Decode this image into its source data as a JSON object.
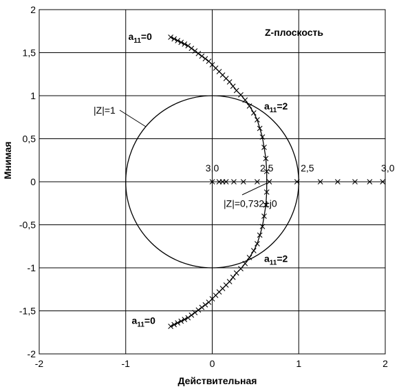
{
  "chart_data": {
    "type": "scatter",
    "title": "",
    "plane_label": "Z-плоскость",
    "xlabel": "Действительная",
    "ylabel": "Мнимая",
    "xlim": [
      -2,
      2
    ],
    "ylim": [
      -2,
      2
    ],
    "xticks": [
      -2,
      -1,
      0,
      1,
      2
    ],
    "xtick_labels": [
      "-2",
      "-1",
      "0",
      "1",
      "2"
    ],
    "yticks": [
      2,
      1.5,
      1,
      0.5,
      0,
      -0.5,
      -1,
      -1.5,
      -2
    ],
    "ytick_labels": [
      "2",
      "1,5",
      "1",
      "0,5",
      "0",
      "-0,5",
      "-1",
      "-1,5",
      "-2"
    ],
    "grid": true,
    "unit_circle": {
      "radius": 1,
      "label": "|Z|=1"
    },
    "series": [
      {
        "points": [
          [
            -0.48,
            1.68
          ],
          [
            -0.44,
            1.66
          ],
          [
            -0.4,
            1.64
          ],
          [
            -0.36,
            1.62
          ],
          [
            -0.32,
            1.6
          ],
          [
            -0.28,
            1.58
          ],
          [
            -0.24,
            1.55
          ],
          [
            -0.2,
            1.52
          ],
          [
            -0.16,
            1.49
          ],
          [
            -0.12,
            1.46
          ],
          [
            -0.08,
            1.43
          ],
          [
            -0.04,
            1.4
          ],
          [
            0.0,
            1.36
          ],
          [
            0.04,
            1.32
          ],
          [
            0.08,
            1.28
          ],
          [
            0.12,
            1.24
          ],
          [
            0.16,
            1.2
          ],
          [
            0.2,
            1.16
          ],
          [
            0.24,
            1.11
          ],
          [
            0.28,
            1.06
          ],
          [
            0.33,
            1.01
          ],
          [
            0.38,
            0.95
          ],
          [
            0.43,
            0.88
          ],
          [
            0.48,
            0.8
          ],
          [
            0.52,
            0.72
          ],
          [
            0.55,
            0.62
          ],
          [
            0.58,
            0.52
          ],
          [
            0.6,
            0.4
          ],
          [
            0.62,
            0.27
          ],
          [
            0.63,
            0.12
          ],
          [
            0.63,
            -0.12
          ],
          [
            0.62,
            -0.27
          ],
          [
            0.6,
            -0.4
          ],
          [
            0.58,
            -0.52
          ],
          [
            0.55,
            -0.62
          ],
          [
            0.52,
            -0.72
          ],
          [
            0.48,
            -0.8
          ],
          [
            0.43,
            -0.88
          ],
          [
            0.38,
            -0.95
          ],
          [
            0.33,
            -1.01
          ],
          [
            0.28,
            -1.06
          ],
          [
            0.24,
            -1.11
          ],
          [
            0.2,
            -1.16
          ],
          [
            0.16,
            -1.2
          ],
          [
            0.12,
            -1.24
          ],
          [
            0.08,
            -1.28
          ],
          [
            0.04,
            -1.32
          ],
          [
            0.0,
            -1.36
          ],
          [
            -0.04,
            -1.4
          ],
          [
            -0.08,
            -1.43
          ],
          [
            -0.12,
            -1.46
          ],
          [
            -0.16,
            -1.49
          ],
          [
            -0.2,
            -1.52
          ],
          [
            -0.24,
            -1.55
          ],
          [
            -0.28,
            -1.58
          ],
          [
            -0.32,
            -1.6
          ],
          [
            -0.36,
            -1.62
          ],
          [
            -0.4,
            -1.64
          ],
          [
            -0.44,
            -1.66
          ],
          [
            -0.48,
            -1.68
          ]
        ]
      },
      {
        "points": [
          [
            0.0,
            0
          ],
          [
            0.08,
            0
          ],
          [
            0.12,
            0
          ],
          [
            0.16,
            0
          ],
          [
            0.25,
            0
          ],
          [
            0.36,
            0
          ],
          [
            0.52,
            0
          ],
          [
            0.66,
            0
          ],
          [
            0.98,
            0
          ],
          [
            1.25,
            0
          ],
          [
            1.45,
            0
          ],
          [
            1.65,
            0
          ],
          [
            1.82,
            0
          ],
          [
            1.97,
            0
          ]
        ]
      }
    ],
    "annotations": [
      {
        "text": "a",
        "sub": "11",
        "rest": "=0",
        "x": -0.97,
        "y": 1.65
      },
      {
        "text": "a",
        "sub": "11",
        "rest": "=2",
        "x": 0.6,
        "y": 0.84
      },
      {
        "text": "a",
        "sub": "11",
        "rest": "=2",
        "x": 0.6,
        "y": -0.93
      },
      {
        "text": "a",
        "sub": "11",
        "rest": "=0",
        "x": -0.93,
        "y": -1.65
      },
      {
        "text": "3,0",
        "x": 0.0,
        "y": 0.12
      },
      {
        "text": "2,5",
        "x": 0.63,
        "y": 0.12
      },
      {
        "text": "2,5",
        "x": 1.1,
        "y": 0.12
      },
      {
        "text": "3,0",
        "x": 2.03,
        "y": 0.12
      },
      {
        "text": "|Z|=0,732±j0",
        "x": 0.44,
        "y": -0.29
      }
    ]
  }
}
